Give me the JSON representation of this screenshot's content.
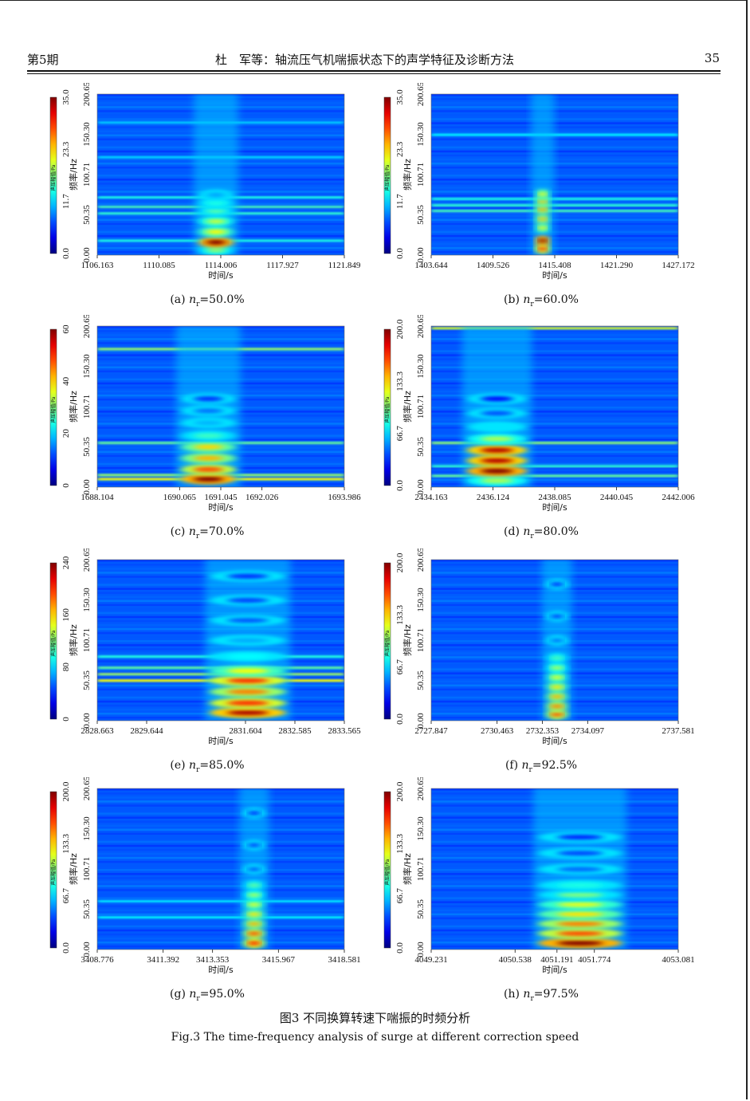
{
  "header": {
    "issue": "第5期",
    "title": "杜　军等：轴流压气机喘振状态下的声学特征及诊断方法",
    "page_number": "35"
  },
  "figure": {
    "caption_cn": "图3 不同换算转速下喘振的时频分析",
    "caption_en": "Fig.3 The time-frequency analysis of surge at different correction speed"
  },
  "chart_data": [
    {
      "type": "heatmap",
      "id": "a",
      "caption_prefix": "(a)",
      "caption_value": "=50.0%",
      "xlabel": "时间/s",
      "ylabel": "频率/Hz",
      "colorbar_label": "声压幅值/Pa",
      "x_ticks": [
        "1106.163",
        "1110.085",
        "1114.006",
        "1117.927",
        "1121.849"
      ],
      "x_tick_pos": [
        0,
        0.25,
        0.5,
        0.75,
        1
      ],
      "y_ticks": [
        "0.00",
        "50.35",
        "100.71",
        "150.30",
        "200.65"
      ],
      "colorbar_ticks": [
        "0.0",
        "11.7",
        "23.3",
        "35.0"
      ],
      "xlim": [
        1106.163,
        1121.849
      ],
      "ylim": [
        0,
        200.65
      ],
      "clim": [
        0,
        35
      ],
      "burst": {
        "start": 1112.6,
        "end": 1114.8
      },
      "burst_bands": [
        {
          "f": 6,
          "v": 18
        },
        {
          "f": 16,
          "v": 35
        },
        {
          "f": 29,
          "v": 22
        },
        {
          "f": 42,
          "v": 20
        },
        {
          "f": 55,
          "v": 16
        },
        {
          "f": 65,
          "v": 14
        },
        {
          "f": 75,
          "v": 10
        }
      ],
      "bg_lines": [
        {
          "f": 18,
          "v": 7
        },
        {
          "f": 52,
          "v": 8
        },
        {
          "f": 60,
          "v": 9
        },
        {
          "f": 72,
          "v": 7
        },
        {
          "f": 122,
          "v": 4
        },
        {
          "f": 165,
          "v": 4
        }
      ],
      "bg_level": 5
    },
    {
      "type": "heatmap",
      "id": "b",
      "caption_prefix": "(b)",
      "caption_value": "=60.0%",
      "xlabel": "时间/s",
      "ylabel": "频率/Hz",
      "colorbar_label": "声压幅值/Pa",
      "x_ticks": [
        "1403.644",
        "1409.526",
        "1415.408",
        "1421.290",
        "1427.172"
      ],
      "x_tick_pos": [
        0,
        0.25,
        0.5,
        0.75,
        1
      ],
      "y_ticks": [
        "0.00",
        "50.35",
        "100.71",
        "150.30",
        "200.65"
      ],
      "colorbar_ticks": [
        "0.0",
        "11.7",
        "23.3",
        "35.0"
      ],
      "xlim": [
        1403.644,
        1427.172
      ],
      "ylim": [
        0,
        200.65
      ],
      "clim": [
        0,
        35
      ],
      "burst": {
        "start": 1413.6,
        "end": 1414.9
      },
      "burst_bands": [
        {
          "f": 8,
          "v": 30
        },
        {
          "f": 18,
          "v": 35
        },
        {
          "f": 34,
          "v": 22
        },
        {
          "f": 45,
          "v": 24
        },
        {
          "f": 57,
          "v": 25
        },
        {
          "f": 67,
          "v": 24
        },
        {
          "f": 76,
          "v": 22
        }
      ],
      "bg_lines": [
        {
          "f": 55,
          "v": 9
        },
        {
          "f": 62,
          "v": 8
        },
        {
          "f": 70,
          "v": 7
        },
        {
          "f": 150,
          "v": 5
        }
      ],
      "bg_level": 5
    },
    {
      "type": "heatmap",
      "id": "c",
      "caption_prefix": "(c)",
      "caption_value": "=70.0%",
      "xlabel": "时间/s",
      "ylabel": "频率/Hz",
      "colorbar_label": "声压幅值/Pa",
      "x_ticks": [
        "1688.104",
        "1690.065",
        "1691.045",
        "1692.026",
        "1693.986"
      ],
      "x_tick_pos": [
        0,
        0.3333,
        0.5,
        0.6667,
        1
      ],
      "y_ticks": [
        "0.00",
        "50.35",
        "100.71",
        "150.30",
        "200.65"
      ],
      "colorbar_ticks": [
        "0",
        "20",
        "40",
        "60"
      ],
      "xlim": [
        1688.104,
        1693.986
      ],
      "ylim": [
        0,
        200.65
      ],
      "clim": [
        0,
        60
      ],
      "burst": {
        "start": 1690.1,
        "end": 1691.4
      },
      "burst_bands": [
        {
          "f": 10,
          "v": 60
        },
        {
          "f": 22,
          "v": 48
        },
        {
          "f": 36,
          "v": 42
        },
        {
          "f": 50,
          "v": 40
        },
        {
          "f": 64,
          "v": 26
        },
        {
          "f": 80,
          "v": 18
        },
        {
          "f": 95,
          "v": 14
        },
        {
          "f": 110,
          "v": 10
        }
      ],
      "bg_lines": [
        {
          "f": 10,
          "v": 30
        },
        {
          "f": 15,
          "v": 22
        },
        {
          "f": 55,
          "v": 18
        },
        {
          "f": 172,
          "v": 22
        }
      ],
      "bg_level": 8
    },
    {
      "type": "heatmap",
      "id": "d",
      "caption_prefix": "(d)",
      "caption_value": "=80.0%",
      "xlabel": "时间/s",
      "ylabel": "频率/Hz",
      "colorbar_label": "声压幅值/Pa",
      "x_ticks": [
        "2434.163",
        "2436.124",
        "2438.085",
        "2440.045",
        "2442.006"
      ],
      "x_tick_pos": [
        0,
        0.25,
        0.5,
        0.75,
        1
      ],
      "y_ticks": [
        "0.00",
        "50.35",
        "100.71",
        "150.30",
        "200.65"
      ],
      "colorbar_ticks": [
        "0.0",
        "66.7",
        "133.3",
        "200.0"
      ],
      "xlim": [
        2434.163,
        2442.006
      ],
      "ylim": [
        0,
        200.65
      ],
      "clim": [
        0,
        200
      ],
      "burst": {
        "start": 2435.3,
        "end": 2437.2
      },
      "burst_bands": [
        {
          "f": 8,
          "v": 110
        },
        {
          "f": 20,
          "v": 200
        },
        {
          "f": 33,
          "v": 190
        },
        {
          "f": 46,
          "v": 190
        },
        {
          "f": 60,
          "v": 110
        },
        {
          "f": 75,
          "v": 70
        },
        {
          "f": 92,
          "v": 40
        },
        {
          "f": 110,
          "v": 25
        }
      ],
      "bg_lines": [
        {
          "f": 14,
          "v": 60
        },
        {
          "f": 26,
          "v": 45
        },
        {
          "f": 55,
          "v": 70
        },
        {
          "f": 198,
          "v": 90
        }
      ],
      "bg_level": 25
    },
    {
      "type": "heatmap",
      "id": "e",
      "caption_prefix": "(e)",
      "caption_value": "=85.0%",
      "xlabel": "时间/s",
      "ylabel": "频率/Hz",
      "colorbar_label": "声压幅值/Pa",
      "x_ticks": [
        "2828.663",
        "2829.644",
        "2831.604",
        "2832.585",
        "2833.565"
      ],
      "x_tick_pos": [
        0,
        0.2,
        0.6,
        0.8,
        1
      ],
      "y_ticks": [
        "0.00",
        "50.35",
        "100.71",
        "150.30",
        "200.65"
      ],
      "colorbar_ticks": [
        "0",
        "80",
        "160",
        "240"
      ],
      "xlim": [
        2828.663,
        2833.565
      ],
      "ylim": [
        0,
        200.65
      ],
      "clim": [
        0,
        240
      ],
      "burst": {
        "start": 2830.9,
        "end": 2832.4
      },
      "burst_bands": [
        {
          "f": 10,
          "v": 230
        },
        {
          "f": 22,
          "v": 200
        },
        {
          "f": 36,
          "v": 180
        },
        {
          "f": 50,
          "v": 200
        },
        {
          "f": 62,
          "v": 150
        },
        {
          "f": 80,
          "v": 90
        },
        {
          "f": 100,
          "v": 70
        },
        {
          "f": 125,
          "v": 50
        },
        {
          "f": 150,
          "v": 45
        },
        {
          "f": 180,
          "v": 40
        }
      ],
      "bg_lines": [
        {
          "f": 50,
          "v": 120
        },
        {
          "f": 58,
          "v": 90
        },
        {
          "f": 66,
          "v": 70
        },
        {
          "f": 80,
          "v": 50
        }
      ],
      "bg_level": 30
    },
    {
      "type": "heatmap",
      "id": "f",
      "caption_prefix": "(f)",
      "caption_value": "=92.5%",
      "xlabel": "时间/s",
      "ylabel": "频率/Hz",
      "colorbar_label": "声压幅值/Pa",
      "x_ticks": [
        "2727.847",
        "2730.463",
        "2732.353",
        "2734.097",
        "2737.581"
      ],
      "x_tick_pos": [
        0,
        0.2667,
        0.45,
        0.6333,
        1
      ],
      "y_ticks": [
        "0.00",
        "50.35",
        "100.71",
        "150.30",
        "200.65"
      ],
      "colorbar_ticks": [
        "0.0",
        "66.7",
        "133.3",
        "200.0"
      ],
      "xlim": [
        2727.847,
        2737.581
      ],
      "ylim": [
        0,
        200.65
      ],
      "clim": [
        0,
        200
      ],
      "burst": {
        "start": 2732.4,
        "end": 2733.2
      },
      "burst_bands": [
        {
          "f": 8,
          "v": 160
        },
        {
          "f": 18,
          "v": 150
        },
        {
          "f": 30,
          "v": 140
        },
        {
          "f": 42,
          "v": 130
        },
        {
          "f": 54,
          "v": 120
        },
        {
          "f": 66,
          "v": 110
        },
        {
          "f": 78,
          "v": 90
        },
        {
          "f": 100,
          "v": 45
        },
        {
          "f": 130,
          "v": 35
        },
        {
          "f": 170,
          "v": 30
        }
      ],
      "bg_lines": [],
      "bg_level": 28
    },
    {
      "type": "heatmap",
      "id": "g",
      "caption_prefix": "(g)",
      "caption_value": "=95.0%",
      "xlabel": "时间/s",
      "ylabel": "频率/Hz",
      "colorbar_label": "声压幅值/Pa",
      "x_ticks": [
        "3408.776",
        "3411.392",
        "3413.353",
        "3415.967",
        "3418.581"
      ],
      "x_tick_pos": [
        0,
        0.2667,
        0.4667,
        0.7333,
        1
      ],
      "y_ticks": [
        "0.00",
        "50.35",
        "100.71",
        "150.30",
        "200.65"
      ],
      "colorbar_ticks": [
        "0.0",
        "66.7",
        "133.3",
        "200.0"
      ],
      "xlim": [
        3408.776,
        3418.581
      ],
      "ylim": [
        0,
        200.65
      ],
      "clim": [
        0,
        200
      ],
      "burst": {
        "start": 3414.6,
        "end": 3415.4
      },
      "burst_bands": [
        {
          "f": 8,
          "v": 170
        },
        {
          "f": 20,
          "v": 160
        },
        {
          "f": 32,
          "v": 140
        },
        {
          "f": 44,
          "v": 130
        },
        {
          "f": 56,
          "v": 120
        },
        {
          "f": 68,
          "v": 110
        },
        {
          "f": 80,
          "v": 95
        },
        {
          "f": 100,
          "v": 40
        },
        {
          "f": 130,
          "v": 35
        },
        {
          "f": 170,
          "v": 30
        }
      ],
      "bg_lines": [
        {
          "f": 40,
          "v": 35
        },
        {
          "f": 60,
          "v": 30
        }
      ],
      "bg_level": 22
    },
    {
      "type": "heatmap",
      "id": "h",
      "caption_prefix": "(h)",
      "caption_value": "=97.5%",
      "xlabel": "时间/s",
      "ylabel": "频率/Hz",
      "colorbar_label": "声压幅值/Pa",
      "x_ticks": [
        "4049.231",
        "4050.538",
        "4051.191",
        "4051.774",
        "4053.081"
      ],
      "x_tick_pos": [
        0,
        0.3395,
        0.5091,
        0.6605,
        1
      ],
      "y_ticks": [
        "0.00",
        "50.35",
        "100.71",
        "150.30",
        "200.65"
      ],
      "colorbar_ticks": [
        "0.0",
        "66.7",
        "133.3",
        "200.0"
      ],
      "xlim": [
        4049.231,
        4053.081
      ],
      "ylim": [
        0,
        200.65
      ],
      "clim": [
        0,
        200
      ],
      "burst": {
        "start": 4050.9,
        "end": 4052.2
      },
      "burst_bands": [
        {
          "f": 8,
          "v": 200
        },
        {
          "f": 20,
          "v": 160
        },
        {
          "f": 32,
          "v": 150
        },
        {
          "f": 44,
          "v": 130
        },
        {
          "f": 56,
          "v": 120
        },
        {
          "f": 68,
          "v": 100
        },
        {
          "f": 80,
          "v": 80
        },
        {
          "f": 100,
          "v": 45
        },
        {
          "f": 120,
          "v": 38
        },
        {
          "f": 140,
          "v": 32
        }
      ],
      "bg_lines": [],
      "bg_level": 26
    }
  ]
}
